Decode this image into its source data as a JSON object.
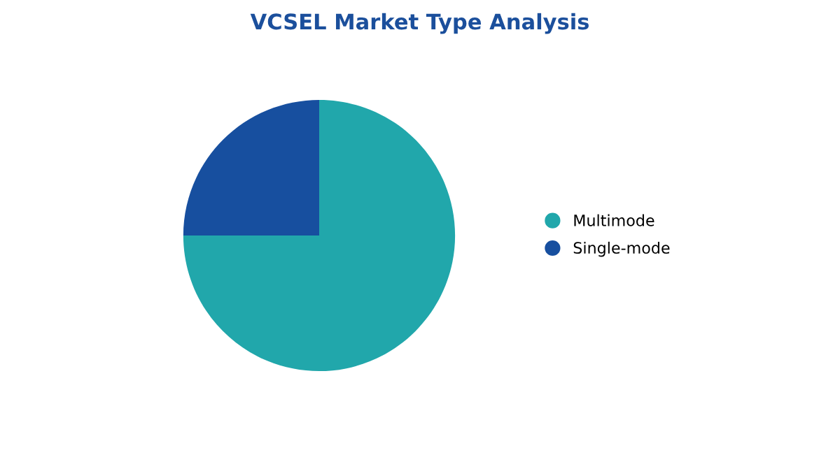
{
  "chart_data": {
    "type": "pie",
    "title": "VCSEL Market Type Analysis",
    "categories": [
      "Multimode",
      "Single-mode"
    ],
    "values": [
      75,
      25
    ],
    "colors": [
      "#21a7ab",
      "#174f9f"
    ],
    "legend": "right"
  }
}
